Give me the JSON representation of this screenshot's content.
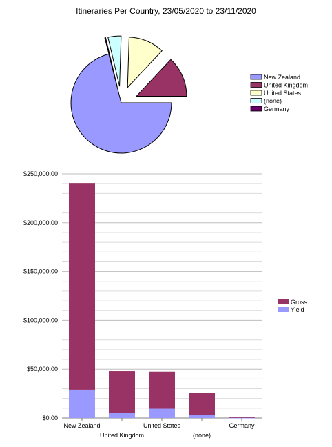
{
  "chart_data": [
    {
      "type": "pie",
      "title": "Itineraries Per Country, 23/05/2020 to 23/11/2020",
      "exploded": true,
      "legend_position": "right",
      "slices": [
        {
          "label": "New Zealand",
          "value": 71.0,
          "color": "#9999ff"
        },
        {
          "label": "United Kingdom",
          "value": 13.0,
          "color": "#993366"
        },
        {
          "label": "United States",
          "value": 11.5,
          "color": "#ffffcc"
        },
        {
          "label": "(none)",
          "value": 4.2,
          "color": "#ccffff"
        },
        {
          "label": "Germany",
          "value": 0.3,
          "color": "#660066"
        }
      ]
    },
    {
      "type": "bar",
      "stacked": true,
      "categories": [
        "New Zealand",
        "United Kingdom",
        "United States",
        "(none)",
        "Germany"
      ],
      "ylim": [
        0,
        250000
      ],
      "y_ticks": [
        "$0.00",
        "$50,000.00",
        "$100,000.00",
        "$150,000.00",
        "$200,000.00",
        "$250,000.00"
      ],
      "y_tick_values": [
        0,
        50000,
        100000,
        150000,
        200000,
        250000
      ],
      "grid": true,
      "legend_position": "right",
      "series": [
        {
          "name": "Gross",
          "color": "#993366",
          "values": [
            211000,
            43000,
            38000,
            22500,
            1000
          ]
        },
        {
          "name": "Yield",
          "color": "#9999ff",
          "values": [
            29000,
            5000,
            9500,
            3000,
            200
          ]
        }
      ]
    }
  ]
}
